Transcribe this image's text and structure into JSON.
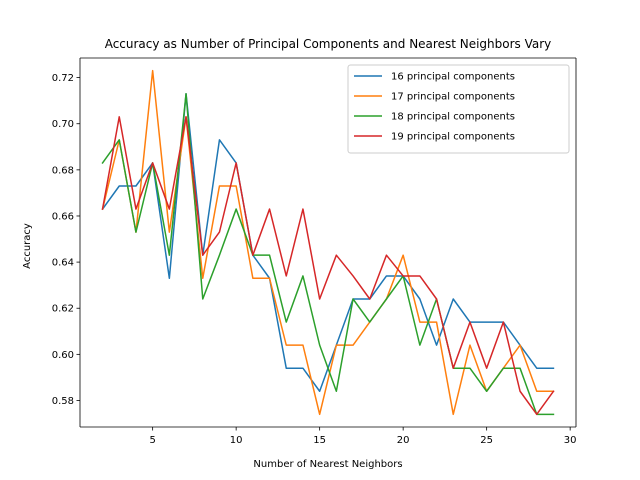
{
  "chart_data": {
    "type": "line",
    "title": "Accuracy as Number of Principal Components and Nearest Neighbors Vary",
    "xlabel": "Number of Nearest Neighbors",
    "ylabel": "Accuracy",
    "xlim": [
      0.65,
      30.35
    ],
    "ylim": [
      0.5685,
      0.7285
    ],
    "xticks": [
      5,
      10,
      15,
      20,
      25,
      30
    ],
    "xtick_labels": [
      "5",
      "10",
      "15",
      "20",
      "25",
      "30"
    ],
    "yticks": [
      0.58,
      0.6,
      0.62,
      0.64,
      0.66,
      0.68,
      0.7,
      0.72
    ],
    "ytick_labels": [
      "0.58",
      "0.60",
      "0.62",
      "0.64",
      "0.66",
      "0.68",
      "0.70",
      "0.72"
    ],
    "grid": false,
    "legend_position": "top-right",
    "x": [
      2,
      3,
      4,
      5,
      6,
      7,
      8,
      9,
      10,
      11,
      12,
      13,
      14,
      15,
      16,
      17,
      18,
      19,
      20,
      21,
      22,
      23,
      24,
      25,
      26,
      27,
      28,
      29
    ],
    "series": [
      {
        "name": "16 principal components",
        "color": "#1f77b4",
        "values": [
          0.663,
          0.673,
          0.673,
          0.683,
          0.633,
          0.713,
          0.643,
          0.693,
          0.683,
          0.643,
          0.633,
          0.594,
          0.594,
          0.584,
          0.604,
          0.624,
          0.624,
          0.634,
          0.634,
          0.624,
          0.604,
          0.624,
          0.614,
          0.614,
          0.614,
          0.604,
          0.594,
          0.594
        ]
      },
      {
        "name": "17 principal components",
        "color": "#ff7f0e",
        "values": [
          0.663,
          0.693,
          0.653,
          0.723,
          0.653,
          0.703,
          0.633,
          0.673,
          0.673,
          0.633,
          0.633,
          0.604,
          0.604,
          0.574,
          0.604,
          0.604,
          0.614,
          0.624,
          0.643,
          0.614,
          0.614,
          0.574,
          0.604,
          0.584,
          0.594,
          0.604,
          0.584,
          0.584
        ]
      },
      {
        "name": "18 principal components",
        "color": "#2ca02c",
        "values": [
          0.683,
          0.693,
          0.653,
          0.683,
          0.643,
          0.713,
          0.624,
          0.643,
          0.663,
          0.643,
          0.643,
          0.614,
          0.634,
          0.604,
          0.584,
          0.624,
          0.614,
          0.624,
          0.634,
          0.604,
          0.624,
          0.594,
          0.594,
          0.584,
          0.594,
          0.594,
          0.574,
          0.574
        ]
      },
      {
        "name": "19 principal components",
        "color": "#d62728",
        "values": [
          0.663,
          0.703,
          0.663,
          0.683,
          0.663,
          0.703,
          0.643,
          0.653,
          0.683,
          0.643,
          0.663,
          0.634,
          0.663,
          0.624,
          0.643,
          0.634,
          0.624,
          0.643,
          0.634,
          0.634,
          0.624,
          0.594,
          0.614,
          0.594,
          0.614,
          0.584,
          0.574,
          0.584
        ]
      }
    ]
  }
}
